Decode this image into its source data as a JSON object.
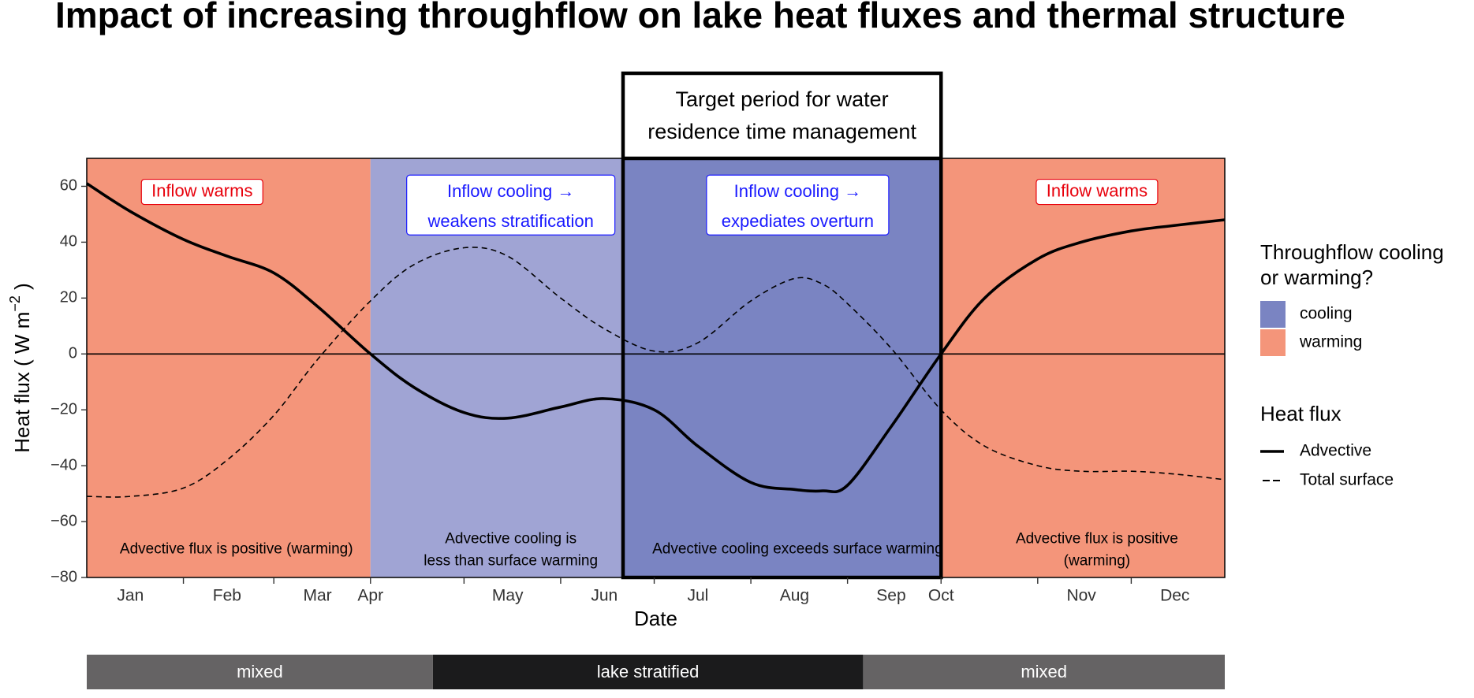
{
  "chart_data": {
    "type": "line",
    "title": "Impact of increasing throughflow on lake heat fluxes and thermal structure",
    "xlabel": "Date",
    "ylabel": "Heat flux ( W m",
    "ylabel_superscript": "−2",
    "ylabel_close": " )",
    "ylim": [
      -80,
      70
    ],
    "xlim": [
      "2000-01-01",
      "2000-12-31"
    ],
    "y_ticks": [
      60,
      40,
      20,
      0,
      -20,
      -40,
      -60,
      -80
    ],
    "y_tick_labels": [
      "60",
      "40",
      "20",
      "0",
      "−20",
      "−40",
      "−60",
      "−80"
    ],
    "x_ticks": [
      {
        "label": "Jan",
        "date": "2000-01-15"
      },
      {
        "label": "Feb",
        "date": "2000-02-15"
      },
      {
        "label": "Mar",
        "date": "2000-03-15"
      },
      {
        "label": "Apr",
        "date": "2000-04-01"
      },
      {
        "label": "May",
        "date": "2000-05-15"
      },
      {
        "label": "Jun",
        "date": "2000-06-15"
      },
      {
        "label": "Jul",
        "date": "2000-07-15"
      },
      {
        "label": "Aug",
        "date": "2000-08-15"
      },
      {
        "label": "Sep",
        "date": "2000-09-15"
      },
      {
        "label": "Oct",
        "date": "2000-10-01"
      },
      {
        "label": "Nov",
        "date": "2000-11-15"
      },
      {
        "label": "Dec",
        "date": "2000-12-15"
      }
    ],
    "minor_ticks": [
      "2000-02-01",
      "2000-03-01",
      "2000-04-01",
      "2000-05-01",
      "2000-06-01",
      "2000-07-01",
      "2000-08-01",
      "2000-09-01",
      "2000-10-01",
      "2000-11-01",
      "2000-12-01"
    ],
    "grid": false,
    "legend_position": "right",
    "colors": {
      "cooling": "#7a84c2",
      "cooling_light": "#a0a4d4",
      "warming": "#f4957a",
      "box_text": "#1a1aff",
      "warm_text": "#e8000b"
    },
    "regions": [
      {
        "fill": "warming",
        "start": "2000-01-01",
        "end": "2000-04-01"
      },
      {
        "fill": "cooling_light",
        "start": "2000-04-01",
        "end": "2000-06-21"
      },
      {
        "fill": "cooling",
        "start": "2000-06-21",
        "end": "2000-10-01"
      },
      {
        "fill": "warming",
        "start": "2000-10-01",
        "end": "2000-12-31"
      }
    ],
    "target_period": {
      "start": "2000-06-21",
      "end": "2000-10-01",
      "label_lines": [
        "Target period for water",
        "residence time management"
      ]
    },
    "region_boxes": [
      {
        "lines": [
          "Inflow warms"
        ],
        "date": "2000-02-07",
        "y": 58,
        "color": "warm"
      },
      {
        "lines": [
          "Inflow cooling  →",
          "weakens stratification"
        ],
        "date": "2000-05-16",
        "y": 53,
        "color": "cool"
      },
      {
        "lines": [
          "Inflow cooling  →",
          "expediates overturn"
        ],
        "date": "2000-08-16",
        "y": 53,
        "color": "cool"
      },
      {
        "lines": [
          "Inflow warms"
        ],
        "date": "2000-11-20",
        "y": 58,
        "color": "warm"
      }
    ],
    "region_notes": [
      {
        "lines": [
          "Advective flux is positive (warming)"
        ],
        "date": "2000-02-18",
        "y": -70
      },
      {
        "lines": [
          "Advective cooling is",
          "less than surface warming"
        ],
        "date": "2000-05-16",
        "y": -70
      },
      {
        "lines": [
          "Advective cooling exceeds surface warming"
        ],
        "date": "2000-08-16",
        "y": -70
      },
      {
        "lines": [
          "Advective flux is positive",
          "(warming)"
        ],
        "date": "2000-11-20",
        "y": -70
      }
    ],
    "series": [
      {
        "name": "Advective",
        "linestyle": "solid",
        "x": [
          "2000-01-01",
          "2000-01-15",
          "2000-02-01",
          "2000-02-15",
          "2000-03-01",
          "2000-03-15",
          "2000-04-01",
          "2000-04-15",
          "2000-05-01",
          "2000-05-15",
          "2000-06-01",
          "2000-06-15",
          "2000-07-01",
          "2000-07-15",
          "2000-08-01",
          "2000-08-15",
          "2000-08-24",
          "2000-09-01",
          "2000-09-15",
          "2000-10-01",
          "2000-10-15",
          "2000-11-01",
          "2000-11-15",
          "2000-12-01",
          "2000-12-15",
          "2000-12-31"
        ],
        "y": [
          61,
          51,
          41,
          35,
          29,
          17,
          0,
          -12,
          -21,
          -23,
          -19,
          -16,
          -20,
          -33,
          -46,
          -48.5,
          -49,
          -47,
          -26,
          0,
          20,
          34,
          40,
          44,
          46,
          48
        ]
      },
      {
        "name": "Total surface",
        "linestyle": "dashed",
        "x": [
          "2000-01-01",
          "2000-01-15",
          "2000-02-01",
          "2000-02-15",
          "2000-03-01",
          "2000-03-15",
          "2000-04-01",
          "2000-04-15",
          "2000-05-01",
          "2000-05-15",
          "2000-06-01",
          "2000-06-15",
          "2000-07-01",
          "2000-07-15",
          "2000-08-01",
          "2000-08-15",
          "2000-08-24",
          "2000-09-01",
          "2000-09-15",
          "2000-10-01",
          "2000-10-15",
          "2000-11-01",
          "2000-11-15",
          "2000-12-01",
          "2000-12-15",
          "2000-12-31"
        ],
        "y": [
          -51,
          -51,
          -48,
          -38,
          -22,
          -2,
          19,
          32,
          38,
          35,
          20,
          9,
          1,
          4,
          19,
          27,
          25,
          18,
          2,
          -20,
          -33,
          -40,
          -42,
          -42,
          -43,
          -45
        ]
      }
    ],
    "legend": {
      "fill_title": [
        "Throughflow cooling",
        "or warming?"
      ],
      "fill_items": [
        {
          "label": "cooling",
          "color": "#7a84c2"
        },
        {
          "label": "warming",
          "color": "#f4957a"
        }
      ],
      "line_title": "Heat flux",
      "line_items": [
        {
          "label": "Advective",
          "linestyle": "solid"
        },
        {
          "label": "Total surface",
          "linestyle": "dashed"
        }
      ]
    },
    "status_bar": [
      {
        "label": "mixed",
        "start": "2000-01-01",
        "end": "2000-04-21",
        "color": "#656364"
      },
      {
        "label": "lake stratified",
        "start": "2000-04-21",
        "end": "2000-09-06",
        "color": "#1b1b1c"
      },
      {
        "label": "mixed",
        "start": "2000-09-06",
        "end": "2000-12-31",
        "color": "#656364"
      }
    ]
  }
}
